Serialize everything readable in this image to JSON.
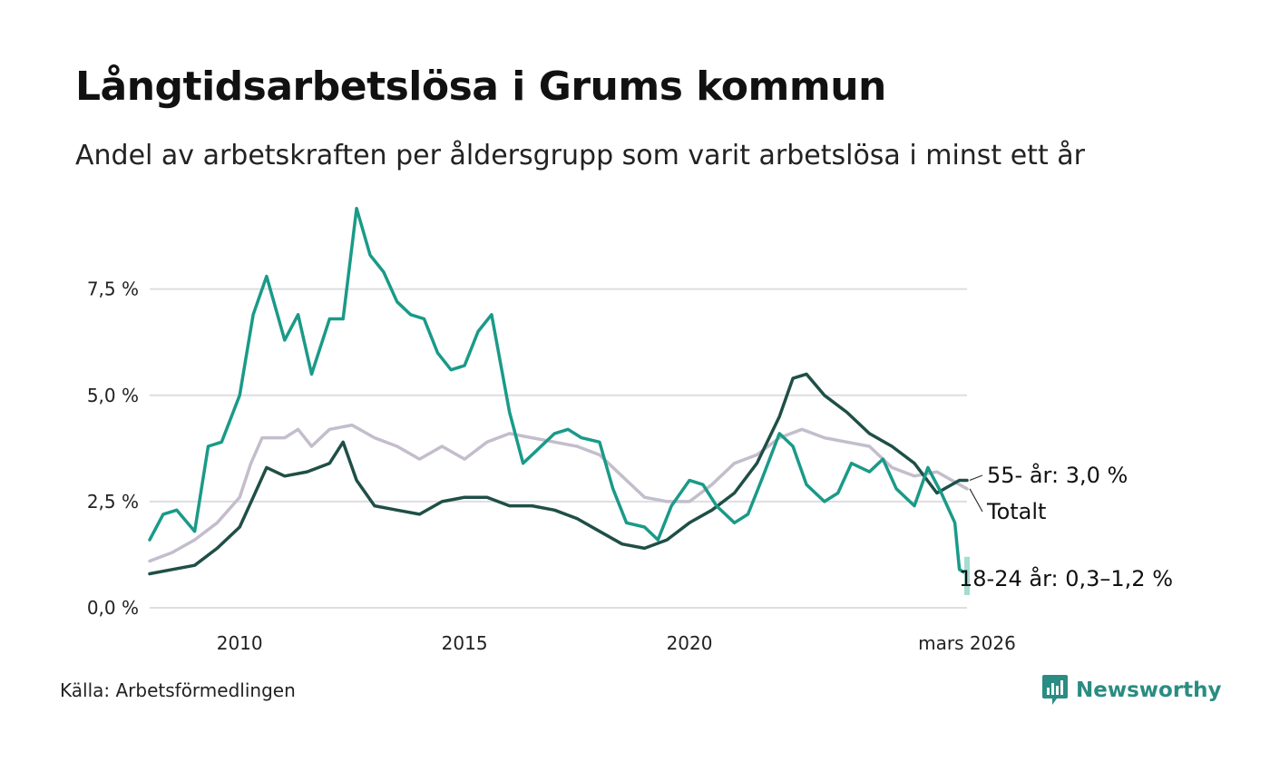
{
  "header": {
    "title": "Långtidsarbetslösa i Grums kommun",
    "subtitle": "Andel av arbetskraften per åldersgrupp som varit arbetslösa i minst ett år"
  },
  "footer": {
    "source": "Källa: Arbetsförmedlingen",
    "brand": "Newsworthy",
    "brand_color": "#2a8c82"
  },
  "chart_data": {
    "type": "line",
    "ylim": [
      0,
      9.5
    ],
    "xlim": [
      2008.0,
      2026.17
    ],
    "yticks": [
      0,
      2.5,
      5,
      7.5
    ],
    "ytick_labels": [
      "0,0 %",
      "2,5 %",
      "5,0 %",
      "7,5 %"
    ],
    "xticks": [
      2010,
      2015,
      2020,
      2026.17
    ],
    "xtick_labels": [
      "2010",
      "2015",
      "2020",
      "mars 2026"
    ],
    "grid": true,
    "series": [
      {
        "name": "Totalt",
        "label": "Totalt",
        "color": "#c3bdcc",
        "x": [
          2008.0,
          2008.5,
          2009.0,
          2009.5,
          2010.0,
          2010.25,
          2010.5,
          2011.0,
          2011.3,
          2011.6,
          2012.0,
          2012.5,
          2013.0,
          2013.5,
          2014.0,
          2014.5,
          2015.0,
          2015.5,
          2016.0,
          2016.5,
          2017.0,
          2017.5,
          2018.0,
          2018.5,
          2019.0,
          2019.5,
          2020.0,
          2020.5,
          2021.0,
          2021.5,
          2022.0,
          2022.5,
          2023.0,
          2023.5,
          2024.0,
          2024.5,
          2025.0,
          2025.5,
          2026.0,
          2026.17
        ],
        "y": [
          1.1,
          1.3,
          1.6,
          2.0,
          2.6,
          3.4,
          4.0,
          4.0,
          4.2,
          3.8,
          4.2,
          4.3,
          4.0,
          3.8,
          3.5,
          3.8,
          3.5,
          3.9,
          4.1,
          4.0,
          3.9,
          3.8,
          3.6,
          3.1,
          2.6,
          2.5,
          2.5,
          2.9,
          3.4,
          3.6,
          4.0,
          4.2,
          4.0,
          3.9,
          3.8,
          3.3,
          3.1,
          3.2,
          2.9,
          2.8
        ]
      },
      {
        "name": "55- år",
        "label": "55- år: 3,0 %",
        "color": "#1f4f47",
        "x": [
          2008.0,
          2008.5,
          2009.0,
          2009.5,
          2010.0,
          2010.3,
          2010.6,
          2011.0,
          2011.5,
          2012.0,
          2012.3,
          2012.6,
          2013.0,
          2013.5,
          2014.0,
          2014.5,
          2015.0,
          2015.5,
          2016.0,
          2016.5,
          2017.0,
          2017.5,
          2018.0,
          2018.5,
          2019.0,
          2019.5,
          2020.0,
          2020.5,
          2021.0,
          2021.5,
          2022.0,
          2022.3,
          2022.6,
          2023.0,
          2023.5,
          2024.0,
          2024.5,
          2025.0,
          2025.5,
          2026.0,
          2026.17
        ],
        "y": [
          0.8,
          0.9,
          1.0,
          1.4,
          1.9,
          2.6,
          3.3,
          3.1,
          3.2,
          3.4,
          3.9,
          3.0,
          2.4,
          2.3,
          2.2,
          2.5,
          2.6,
          2.6,
          2.4,
          2.4,
          2.3,
          2.1,
          1.8,
          1.5,
          1.4,
          1.6,
          2.0,
          2.3,
          2.7,
          3.4,
          4.5,
          5.4,
          5.5,
          5.0,
          4.6,
          4.1,
          3.8,
          3.4,
          2.7,
          3.0,
          3.0
        ]
      },
      {
        "name": "18-24 år",
        "label": "18-24 år: 0,3–1,2 %",
        "color": "#1a9a88",
        "x": [
          2008.0,
          2008.3,
          2008.6,
          2009.0,
          2009.3,
          2009.6,
          2010.0,
          2010.3,
          2010.6,
          2011.0,
          2011.3,
          2011.6,
          2012.0,
          2012.3,
          2012.6,
          2012.9,
          2013.2,
          2013.5,
          2013.8,
          2014.1,
          2014.4,
          2014.7,
          2015.0,
          2015.3,
          2015.6,
          2016.0,
          2016.3,
          2016.6,
          2017.0,
          2017.3,
          2017.6,
          2018.0,
          2018.3,
          2018.6,
          2019.0,
          2019.3,
          2019.6,
          2020.0,
          2020.3,
          2020.6,
          2021.0,
          2021.3,
          2021.6,
          2022.0,
          2022.3,
          2022.6,
          2023.0,
          2023.3,
          2023.6,
          2024.0,
          2024.3,
          2024.6,
          2025.0,
          2025.3,
          2025.6,
          2025.9,
          2026.0,
          2026.17
        ],
        "y": [
          1.6,
          2.2,
          2.3,
          1.8,
          3.8,
          3.9,
          5.0,
          6.9,
          7.8,
          6.3,
          6.9,
          5.5,
          6.8,
          6.8,
          9.4,
          8.3,
          7.9,
          7.2,
          6.9,
          6.8,
          6.0,
          5.6,
          5.7,
          6.5,
          6.9,
          4.6,
          3.4,
          3.7,
          4.1,
          4.2,
          4.0,
          3.9,
          2.8,
          2.0,
          1.9,
          1.6,
          2.4,
          3.0,
          2.9,
          2.4,
          2.0,
          2.2,
          3.0,
          4.1,
          3.8,
          2.9,
          2.5,
          2.7,
          3.4,
          3.2,
          3.5,
          2.8,
          2.4,
          3.3,
          2.7,
          2.0,
          0.9,
          0.8
        ]
      }
    ],
    "band": {
      "name": "18-24 år intervall",
      "x": 2026.17,
      "low": 0.3,
      "high": 1.2,
      "color": "#a6dcd2"
    }
  }
}
